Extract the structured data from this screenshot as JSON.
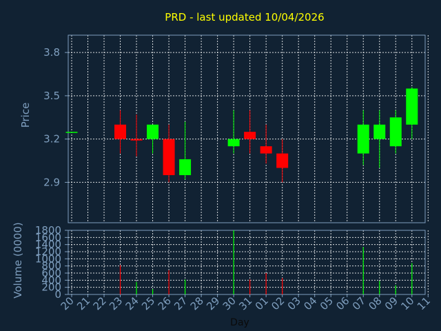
{
  "title": "PRD - last updated 10/04/2026",
  "chart_data": [
    {
      "type": "candlestick",
      "ylabel": "Price",
      "ylim": [
        2.62,
        3.92
      ],
      "y_ticks": [
        "2.9",
        "3.2",
        "3.5",
        "3.8"
      ],
      "grid": true,
      "up_color": "#00ff00",
      "down_color": "#ff0000",
      "x": [
        "20",
        "21",
        "22",
        "23",
        "24",
        "25",
        "26",
        "27",
        "28",
        "29",
        "30",
        "31",
        "01",
        "02",
        "03",
        "04",
        "05",
        "06",
        "07",
        "08",
        "09",
        "10",
        "11"
      ],
      "candles": [
        {
          "day": "20",
          "open": 3.25,
          "high": 3.25,
          "low": 3.25,
          "close": 3.25
        },
        {
          "day": "23",
          "open": 3.3,
          "high": 3.4,
          "low": 3.1,
          "close": 3.2
        },
        {
          "day": "24",
          "open": 3.2,
          "high": 3.37,
          "low": 3.08,
          "close": 3.19
        },
        {
          "day": "25",
          "open": 3.2,
          "high": 3.3,
          "low": 3.1,
          "close": 3.3
        },
        {
          "day": "26",
          "open": 3.2,
          "high": 3.3,
          "low": 2.9,
          "close": 2.95
        },
        {
          "day": "27",
          "open": 2.95,
          "high": 3.32,
          "low": 2.92,
          "close": 3.06
        },
        {
          "day": "30",
          "open": 3.15,
          "high": 3.4,
          "low": 3.1,
          "close": 3.2
        },
        {
          "day": "31",
          "open": 3.25,
          "high": 3.4,
          "low": 3.1,
          "close": 3.2
        },
        {
          "day": "01",
          "open": 3.15,
          "high": 3.3,
          "low": 3.03,
          "close": 3.1
        },
        {
          "day": "02",
          "open": 3.1,
          "high": 3.2,
          "low": 2.9,
          "close": 3.0
        },
        {
          "day": "07",
          "open": 3.1,
          "high": 3.4,
          "low": 3.02,
          "close": 3.3
        },
        {
          "day": "08",
          "open": 3.2,
          "high": 3.4,
          "low": 3.0,
          "close": 3.3
        },
        {
          "day": "09",
          "open": 3.15,
          "high": 3.4,
          "low": 3.1,
          "close": 3.35
        },
        {
          "day": "10",
          "open": 3.3,
          "high": 3.56,
          "low": 3.2,
          "close": 3.55
        }
      ]
    },
    {
      "type": "bar",
      "xlabel": "Day",
      "ylabel": "Volume (0000)",
      "ylim": [
        0,
        1800
      ],
      "y_ticks": [
        "0",
        "200",
        "400",
        "600",
        "800",
        "1000",
        "1200",
        "1400",
        "1600",
        "1800"
      ],
      "grid": true,
      "categories": [
        "20",
        "21",
        "22",
        "23",
        "24",
        "25",
        "26",
        "27",
        "28",
        "29",
        "30",
        "31",
        "01",
        "02",
        "03",
        "04",
        "05",
        "06",
        "07",
        "08",
        "09",
        "10",
        "11"
      ],
      "values": [
        0,
        0,
        0,
        820,
        350,
        150,
        680,
        420,
        0,
        0,
        1800,
        420,
        600,
        460,
        0,
        0,
        0,
        0,
        1330,
        380,
        260,
        880,
        0
      ],
      "direction": [
        "up",
        "",
        "",
        "down",
        "up",
        "up",
        "down",
        "up",
        "",
        "",
        "up",
        "down",
        "down",
        "down",
        "",
        "",
        "",
        "",
        "up",
        "up",
        "up",
        "up",
        ""
      ]
    }
  ]
}
